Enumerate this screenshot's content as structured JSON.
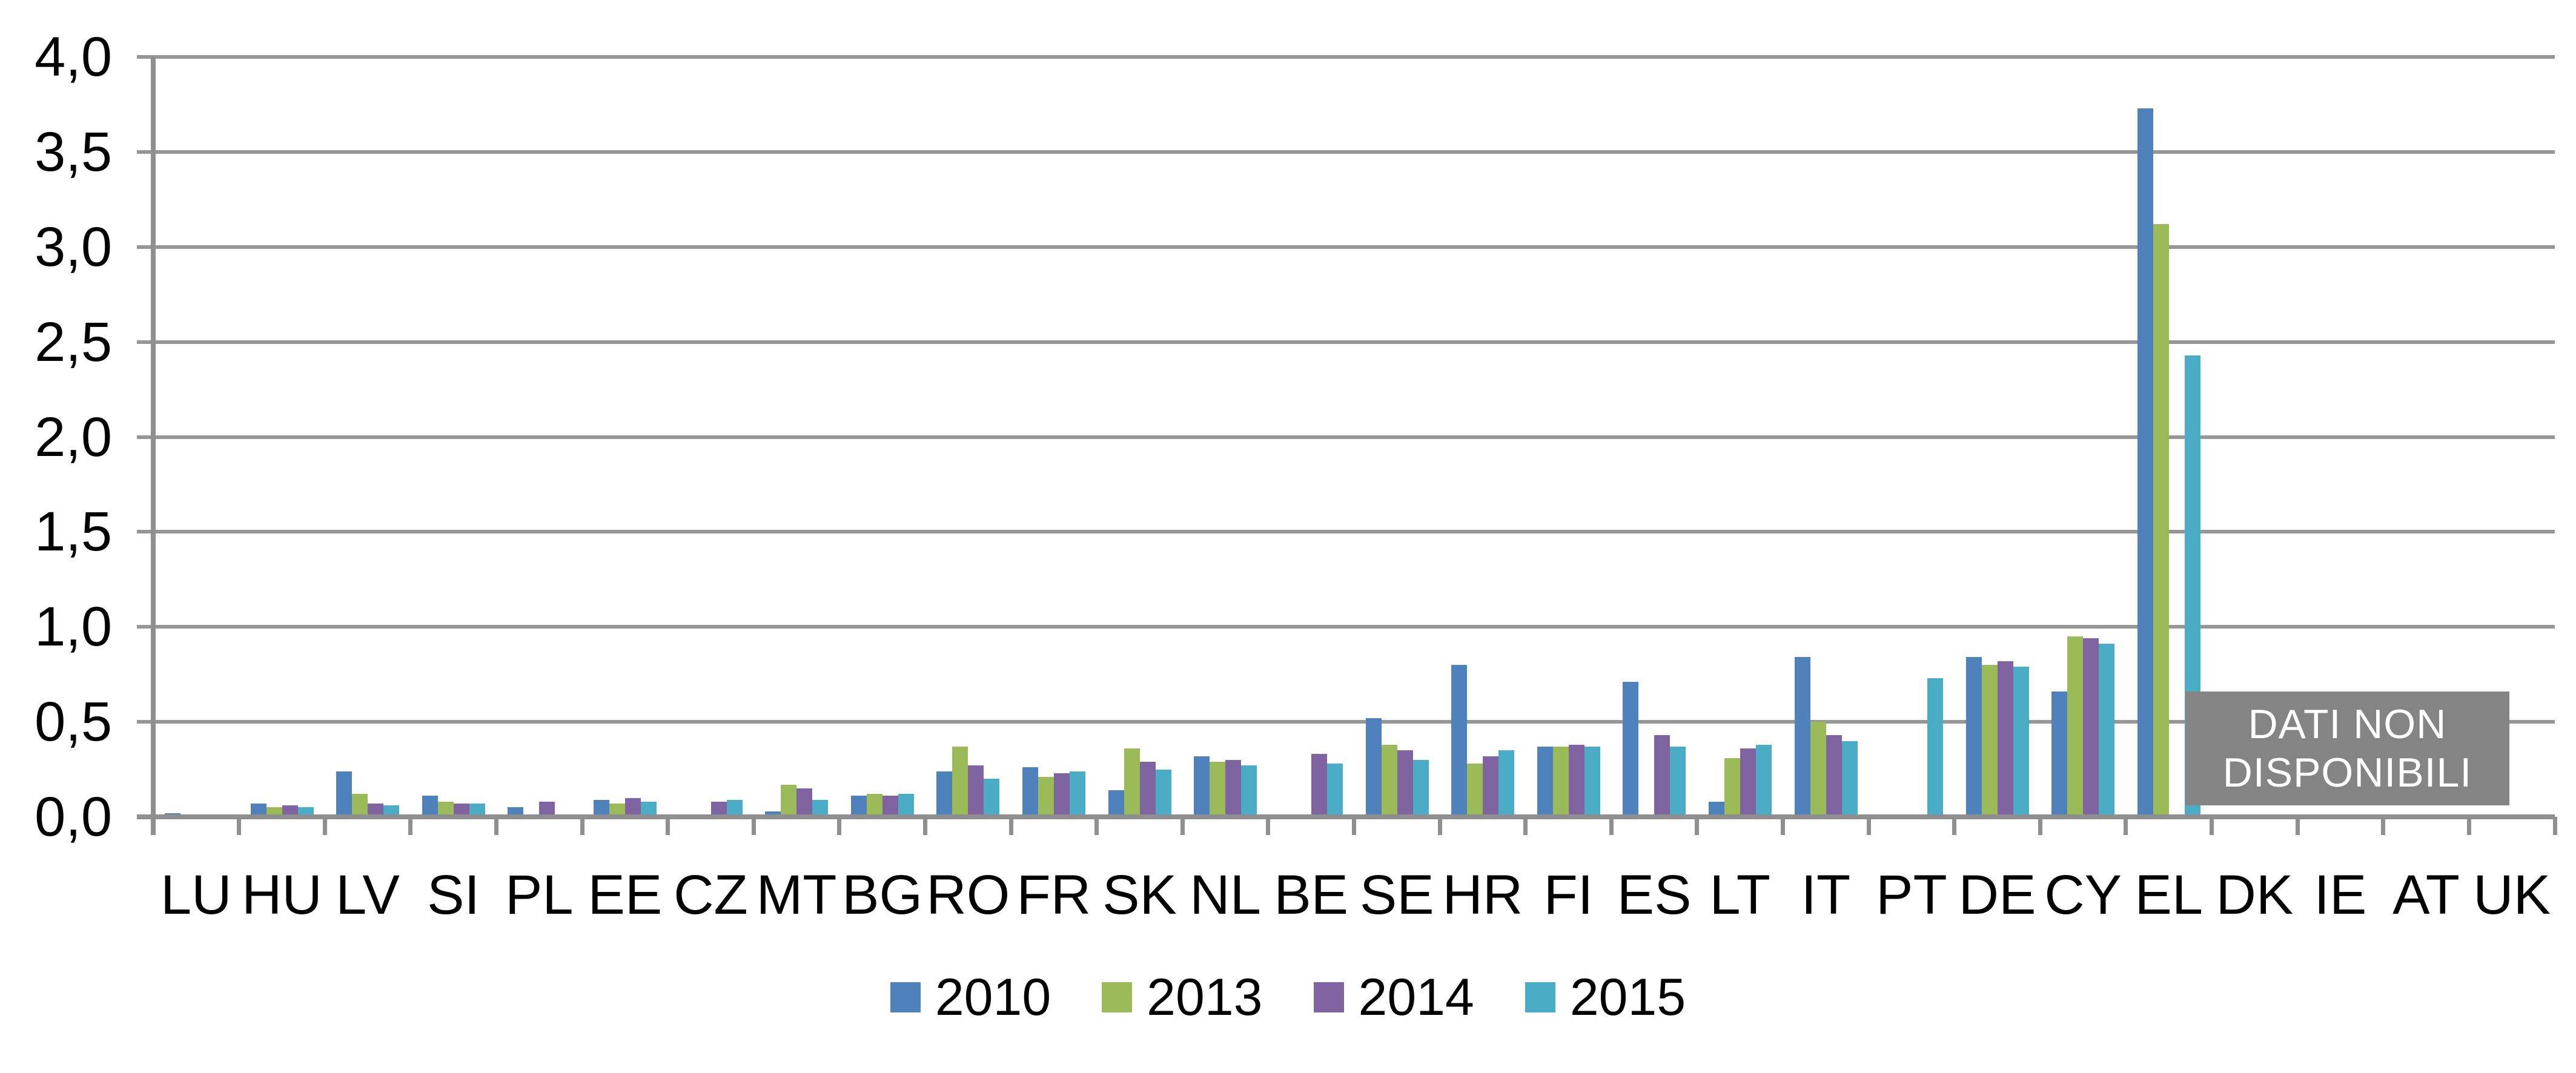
{
  "chart_data": {
    "type": "bar",
    "title": "",
    "xlabel": "",
    "ylabel": "",
    "categories": [
      "LU",
      "HU",
      "LV",
      "SI",
      "PL",
      "EE",
      "CZ",
      "MT",
      "BG",
      "RO",
      "FR",
      "SK",
      "NL",
      "BE",
      "SE",
      "HR",
      "FI",
      "ES",
      "LT",
      "IT",
      "PT",
      "DE",
      "CY",
      "EL",
      "DK",
      "IE",
      "AT",
      "UK"
    ],
    "series": [
      {
        "name": "2010",
        "color": "#4F81BD",
        "values": [
          0.02,
          0.07,
          0.24,
          0.11,
          0.05,
          0.09,
          null,
          0.03,
          0.11,
          0.24,
          0.26,
          0.14,
          0.32,
          null,
          0.52,
          0.8,
          0.37,
          0.71,
          0.08,
          0.84,
          null,
          0.84,
          0.66,
          3.73,
          null,
          null,
          null,
          null
        ]
      },
      {
        "name": "2013",
        "color": "#9BBB59",
        "values": [
          null,
          0.05,
          0.12,
          0.08,
          null,
          0.07,
          null,
          0.17,
          0.12,
          0.37,
          0.21,
          0.36,
          0.29,
          null,
          0.38,
          0.28,
          0.37,
          null,
          0.31,
          0.5,
          null,
          0.8,
          0.95,
          3.12,
          null,
          null,
          null,
          null
        ]
      },
      {
        "name": "2014",
        "color": "#8064A2",
        "values": [
          null,
          0.06,
          0.07,
          0.07,
          0.08,
          0.1,
          0.08,
          0.15,
          0.11,
          0.27,
          0.23,
          0.29,
          0.3,
          0.33,
          0.35,
          0.32,
          0.38,
          0.43,
          0.36,
          0.43,
          null,
          0.82,
          0.94,
          null,
          null,
          null,
          null,
          null
        ]
      },
      {
        "name": "2015",
        "color": "#4BACC6",
        "values": [
          null,
          0.05,
          0.06,
          0.07,
          null,
          0.08,
          0.09,
          0.09,
          0.12,
          0.2,
          0.24,
          0.25,
          0.27,
          0.28,
          0.3,
          0.35,
          0.37,
          0.37,
          0.38,
          0.4,
          0.73,
          0.79,
          0.91,
          2.43,
          null,
          null,
          null,
          null
        ]
      }
    ],
    "ylim": [
      0,
      4
    ],
    "ytick_step": 0.5,
    "ytick_labels": [
      "0,0",
      "0,5",
      "1,0",
      "1,5",
      "2,0",
      "2,5",
      "3,0",
      "3,5",
      "4,0"
    ],
    "decimal_separator": "comma",
    "grid": true,
    "legend_position": "bottom",
    "no_data": {
      "lines": [
        "DATI NON",
        "DISPONIBILI"
      ],
      "label": "DATI NON DISPONIBILI",
      "categories": [
        "DK",
        "IE",
        "AT",
        "UK"
      ],
      "box_color": "#848484",
      "text_color": "#FFFFFF"
    },
    "colors": {
      "gridline": "#969696",
      "axis": "#8F8F8F",
      "background": "#FFFFFF",
      "text": "#000000"
    }
  }
}
